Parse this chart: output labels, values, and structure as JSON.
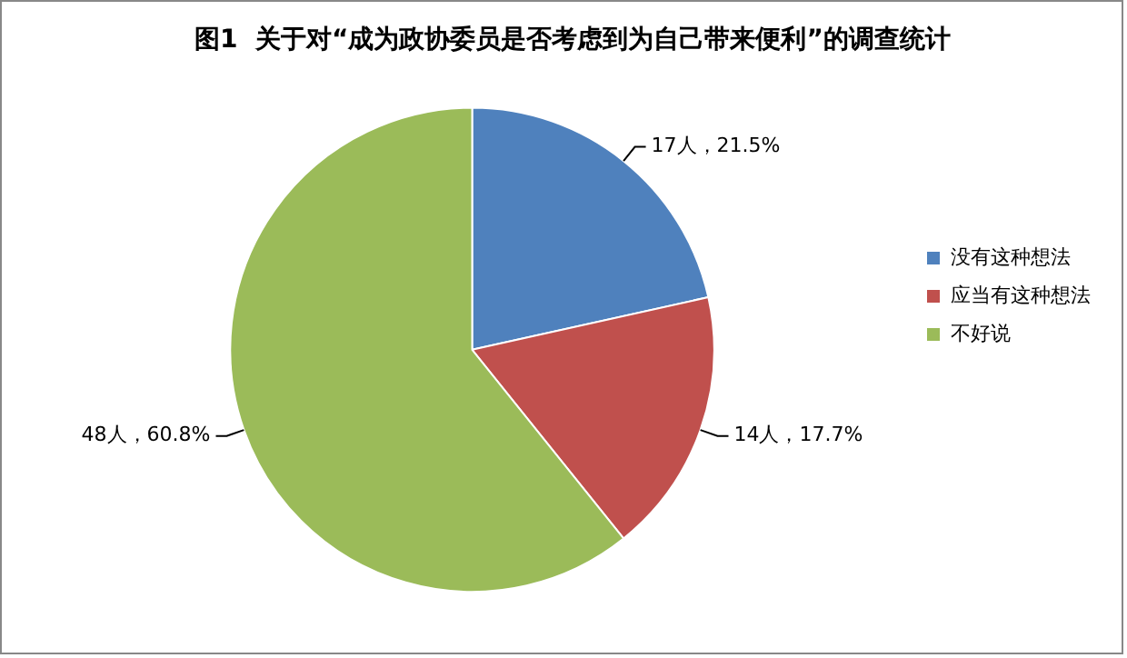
{
  "chart_data": {
    "type": "pie",
    "title": "图1  关于对“成为政协委员是否考虑到为自己带来便利”的调查统计",
    "categories": [
      "没有这种想法",
      "应当有这种想法",
      "不好说"
    ],
    "values": [
      17,
      14,
      48
    ],
    "colors": [
      "#4f81bd",
      "#c0504d",
      "#9bbb59"
    ],
    "value_labels": [
      "17人，21.5%",
      "14人，17.7%",
      "48人，60.8%"
    ],
    "legend": "right"
  }
}
